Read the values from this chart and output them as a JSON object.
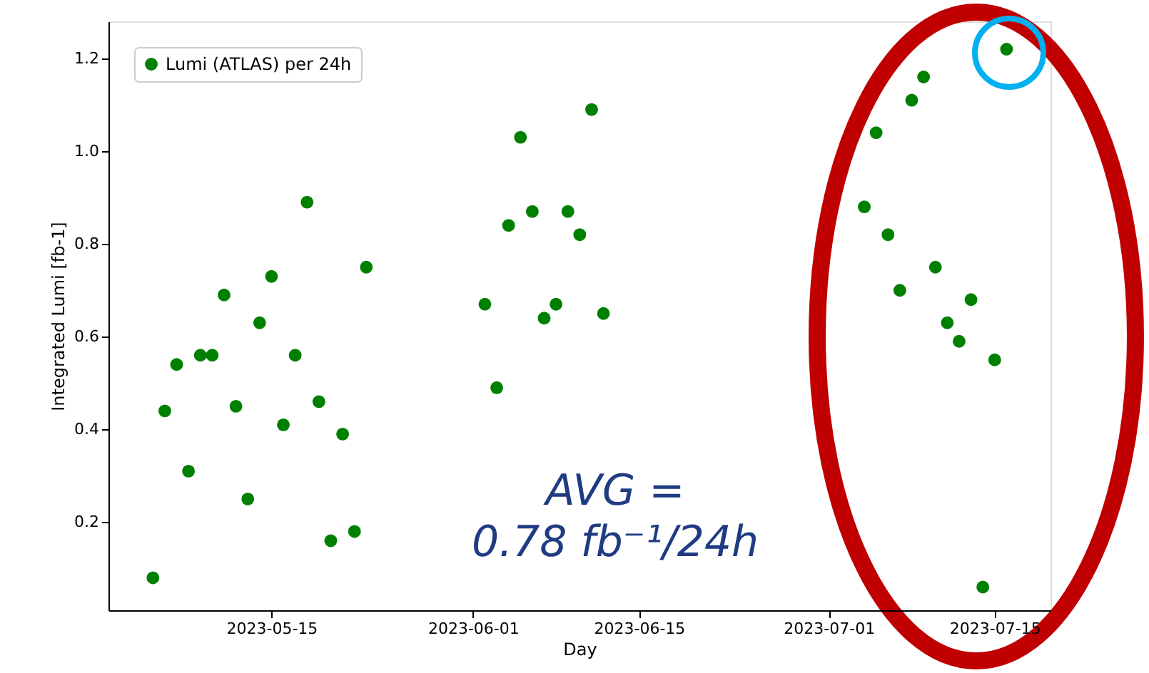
{
  "chart_data": {
    "type": "scatter",
    "xlabel": "Day",
    "ylabel": "Integrated Lumi [fb-1]",
    "x": [
      "2023-05-05",
      "2023-05-06",
      "2023-05-07",
      "2023-05-08",
      "2023-05-09",
      "2023-05-10",
      "2023-05-11",
      "2023-05-12",
      "2023-05-13",
      "2023-05-14",
      "2023-05-15",
      "2023-05-16",
      "2023-05-17",
      "2023-05-18",
      "2023-05-19",
      "2023-05-20",
      "2023-05-21",
      "2023-05-22",
      "2023-05-23",
      "2023-06-02",
      "2023-06-03",
      "2023-06-04",
      "2023-06-05",
      "2023-06-06",
      "2023-06-07",
      "2023-06-08",
      "2023-06-09",
      "2023-06-10",
      "2023-06-11",
      "2023-06-12",
      "2023-07-04",
      "2023-07-05",
      "2023-07-06",
      "2023-07-07",
      "2023-07-08",
      "2023-07-09",
      "2023-07-10",
      "2023-07-11",
      "2023-07-12",
      "2023-07-13",
      "2023-07-14",
      "2023-07-15",
      "2023-07-16"
    ],
    "series": [
      {
        "name": "Lumi (ATLAS) per 24h",
        "color": "#008000",
        "values": [
          0.08,
          0.44,
          0.54,
          0.31,
          0.56,
          0.56,
          0.69,
          0.45,
          0.25,
          0.63,
          0.73,
          0.41,
          0.56,
          0.89,
          0.46,
          0.16,
          0.39,
          0.18,
          0.75,
          0.67,
          0.49,
          0.84,
          1.03,
          0.87,
          0.64,
          0.67,
          0.87,
          0.82,
          1.09,
          0.65,
          0.88,
          1.04,
          0.82,
          0.7,
          1.11,
          1.16,
          0.75,
          0.63,
          0.59,
          0.68,
          0.06,
          0.55,
          1.22
        ]
      }
    ],
    "xlim": [
      "2023-05-01T06:00",
      "2023-07-19T17:00"
    ],
    "xticks": [
      "2023-05-15",
      "2023-06-01",
      "2023-06-15",
      "2023-07-01",
      "2023-07-15"
    ],
    "ylim": [
      0.01,
      1.28
    ],
    "yticks": [
      {
        "value": 0.2,
        "label": "0.2"
      },
      {
        "value": 0.4,
        "label": "0.4"
      },
      {
        "value": 0.6,
        "label": "0.6"
      },
      {
        "value": 0.8,
        "label": "0.8"
      },
      {
        "value": 1.0,
        "label": "1.0"
      },
      {
        "value": 1.2,
        "label": "1.2"
      }
    ],
    "grid": false,
    "legend": "top left",
    "marker": "circle",
    "annotations": [
      "AVG =\n0.78 fb⁻¹/24h"
    ]
  }
}
